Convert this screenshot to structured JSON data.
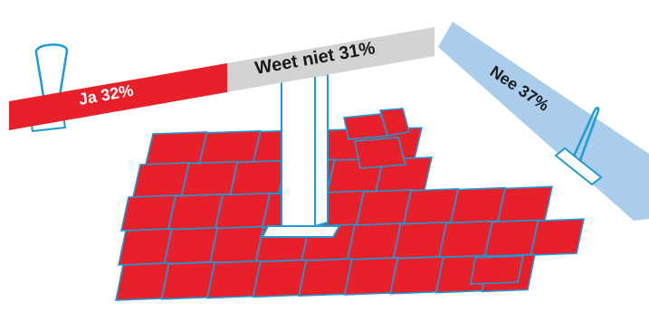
{
  "chart_data": {
    "type": "bar",
    "categories": [
      "Ja",
      "Weet niet",
      "Nee"
    ],
    "values": [
      32,
      31,
      37
    ],
    "unit": "%",
    "labels": [
      "Ja 32%",
      "Weet niet 31%",
      "Nee 37%"
    ]
  },
  "colors": {
    "ja": "#e8202a",
    "weet_niet": "#d2d3d5",
    "nee": "#a9cdeb",
    "outline": "#1e9ad6",
    "tile_fill": "#e8202a",
    "ja_text": "#ffffff",
    "other_text": "#1a1a1a"
  }
}
